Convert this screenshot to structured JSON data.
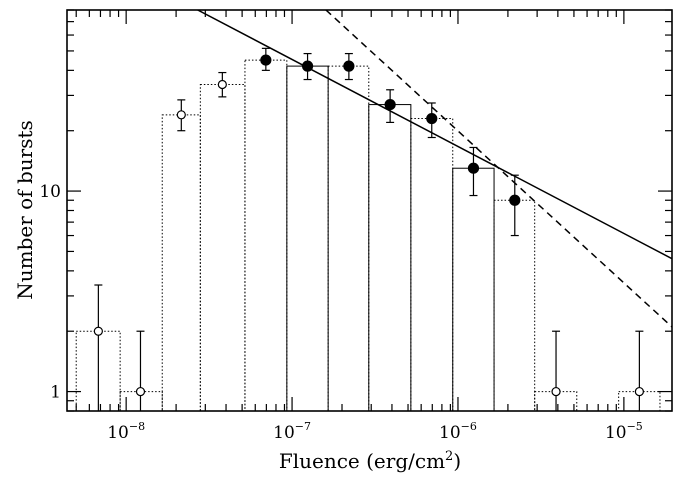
{
  "chart_data": {
    "type": "histogram",
    "xlabel": "Fluence (erg/cm",
    "xlabel_sup": "2",
    "xlabel_tail": ")",
    "ylabel": "Number of bursts",
    "x_scale": "log",
    "y_scale": "log",
    "xlim": [
      4.4e-09,
      1.95e-05
    ],
    "ylim": [
      0.8,
      80
    ],
    "x_tick_labels": [
      {
        "base": "10",
        "exp": "−8",
        "value": 1e-08
      },
      {
        "base": "10",
        "exp": "−7",
        "value": 1e-07
      },
      {
        "base": "10",
        "exp": "−6",
        "value": 1e-06
      },
      {
        "base": "10",
        "exp": "−5",
        "value": 1e-05
      }
    ],
    "y_tick_labels": [
      {
        "label": "1",
        "value": 1
      },
      {
        "label": "10",
        "value": 10
      }
    ],
    "bins": [
      {
        "lo": 5e-09,
        "hi": 9.2e-09,
        "count": 2,
        "outline": "dotted",
        "marker": "open"
      },
      {
        "lo": 9.2e-09,
        "hi": 1.65e-08,
        "count": 1,
        "outline": "dotted",
        "marker": "open"
      },
      {
        "lo": 1.65e-08,
        "hi": 2.8e-08,
        "count": 24,
        "outline": "dotted",
        "marker": "open"
      },
      {
        "lo": 2.8e-08,
        "hi": 5.2e-08,
        "count": 34,
        "outline": "dotted",
        "marker": "open"
      },
      {
        "lo": 5.2e-08,
        "hi": 9.3e-08,
        "count": 45,
        "outline": "dotted",
        "marker": "filled"
      },
      {
        "lo": 9.3e-08,
        "hi": 1.65e-07,
        "count": 42,
        "outline": "solid",
        "marker": "filled"
      },
      {
        "lo": 1.65e-07,
        "hi": 2.9e-07,
        "count": 42,
        "outline": "dotted",
        "marker": "filled"
      },
      {
        "lo": 2.9e-07,
        "hi": 5.2e-07,
        "count": 27,
        "outline": "solid",
        "marker": "filled"
      },
      {
        "lo": 5.2e-07,
        "hi": 9.3e-07,
        "count": 23,
        "outline": "dotted",
        "marker": "filled"
      },
      {
        "lo": 9.3e-07,
        "hi": 1.65e-06,
        "count": 13,
        "outline": "solid",
        "marker": "filled"
      },
      {
        "lo": 1.65e-06,
        "hi": 2.9e-06,
        "count": 9,
        "outline": "dotted",
        "marker": "filled"
      },
      {
        "lo": 2.9e-06,
        "hi": 5.2e-06,
        "count": 1,
        "outline": "dotted",
        "marker": "open"
      },
      {
        "lo": 9.3e-06,
        "hi": 1.65e-05,
        "count": 1,
        "outline": "dotted",
        "marker": "open"
      }
    ],
    "points": [
      {
        "x": 6.8e-09,
        "y": 2,
        "err_lo": 2,
        "err_hi": 3.4,
        "marker": "open",
        "cap_lo": false
      },
      {
        "x": 1.22e-08,
        "y": 1,
        "err_lo": 1,
        "err_hi": 2,
        "marker": "open",
        "cap_lo": false
      },
      {
        "x": 2.15e-08,
        "y": 24,
        "err_lo": 20,
        "err_hi": 28.5,
        "marker": "open",
        "cap_lo": true
      },
      {
        "x": 3.8e-08,
        "y": 34,
        "err_lo": 29.5,
        "err_hi": 39,
        "marker": "open",
        "cap_lo": true
      },
      {
        "x": 6.95e-08,
        "y": 45,
        "err_lo": 40,
        "err_hi": 51.5,
        "marker": "filled",
        "cap_lo": true
      },
      {
        "x": 1.24e-07,
        "y": 42,
        "err_lo": 36,
        "err_hi": 48.5,
        "marker": "filled",
        "cap_lo": true
      },
      {
        "x": 2.2e-07,
        "y": 42,
        "err_lo": 36,
        "err_hi": 48.5,
        "marker": "filled",
        "cap_lo": true
      },
      {
        "x": 3.9e-07,
        "y": 27,
        "err_lo": 22,
        "err_hi": 32,
        "marker": "filled",
        "cap_lo": true
      },
      {
        "x": 6.95e-07,
        "y": 23,
        "err_lo": 18.5,
        "err_hi": 27.5,
        "marker": "filled",
        "cap_lo": true
      },
      {
        "x": 1.24e-06,
        "y": 13,
        "err_lo": 9.5,
        "err_hi": 16.5,
        "marker": "filled",
        "cap_lo": true
      },
      {
        "x": 2.2e-06,
        "y": 9,
        "err_lo": 6,
        "err_hi": 12,
        "marker": "filled",
        "cap_lo": true
      },
      {
        "x": 3.9e-06,
        "y": 1,
        "err_lo": 1,
        "err_hi": 2,
        "marker": "open",
        "cap_lo": false
      },
      {
        "x": 1.24e-05,
        "y": 1,
        "err_lo": 1,
        "err_hi": 2,
        "marker": "open",
        "cap_lo": false
      }
    ],
    "fit_lines": [
      {
        "style": "solid",
        "x": [
          2.7e-08,
          1.95e-05
        ],
        "y": [
          80,
          4.6
        ]
      },
      {
        "style": "dashed",
        "x": [
          1.6e-07,
          1.95e-05
        ],
        "y": [
          80,
          2.1
        ]
      }
    ]
  }
}
